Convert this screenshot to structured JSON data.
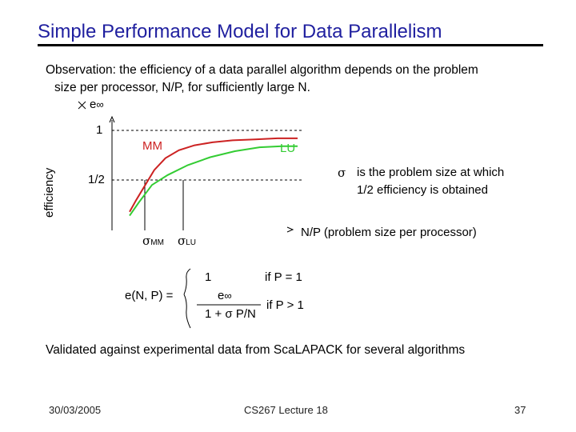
{
  "slide": {
    "title": "Simple Performance Model for Data Parallelism",
    "observation_line1": "Observation: the efficiency of a data parallel algorithm depends on the problem",
    "observation_line2": "size per processor, N/P, for sufficiently large N.",
    "validated": "Validated against experimental data from ScaLAPACK for several algorithms"
  },
  "chart": {
    "y_top_label": "e",
    "y_top_sub": "∞",
    "y_tick_1": "1",
    "y_tick_half": "1/2",
    "y_axis_label": "efficiency",
    "x_axis_label": "N/P (problem size per processor)",
    "sigma_mm": "σ",
    "sigma_mm_sub": "MM",
    "sigma_lu": "σ",
    "sigma_lu_sub": "LU",
    "sigma_note_symbol": "σ",
    "sigma_note_line1": "is the problem size at which",
    "sigma_note_line2": "1/2 efficiency is obtained",
    "colors": {
      "MM": "#cc2222",
      "LU": "#33cc33",
      "axis": "#000000",
      "dashed": "#000000"
    }
  },
  "chart_data": {
    "type": "line",
    "xlabel": "N/P (problem size per processor)",
    "ylabel": "efficiency",
    "yticks": [
      "1/2",
      "1"
    ],
    "series": [
      {
        "name": "MM",
        "x": [
          0,
          0.03,
          0.07,
          0.11,
          0.16,
          0.22,
          0.29,
          0.37,
          0.46,
          0.56,
          0.66,
          0.75
        ],
        "y": [
          0.18,
          0.3,
          0.45,
          0.6,
          0.72,
          0.8,
          0.85,
          0.88,
          0.9,
          0.91,
          0.92,
          0.92
        ]
      },
      {
        "name": "LU",
        "x": [
          0,
          0.04,
          0.1,
          0.17,
          0.26,
          0.36,
          0.47,
          0.58,
          0.68,
          0.75
        ],
        "y": [
          0.14,
          0.27,
          0.45,
          0.55,
          0.65,
          0.73,
          0.79,
          0.83,
          0.84,
          0.84
        ]
      }
    ]
  },
  "formula": {
    "lhs": "e(N, P) =",
    "case1_value": "1",
    "case1_cond": "if P = 1",
    "case2_num": "e",
    "case2_num_sub": "∞",
    "case2_den": "1 + σ P/N",
    "case2_cond": "if P > 1"
  },
  "footer": {
    "date": "30/03/2005",
    "center": "CS267 Lecture 18",
    "page": "37"
  }
}
